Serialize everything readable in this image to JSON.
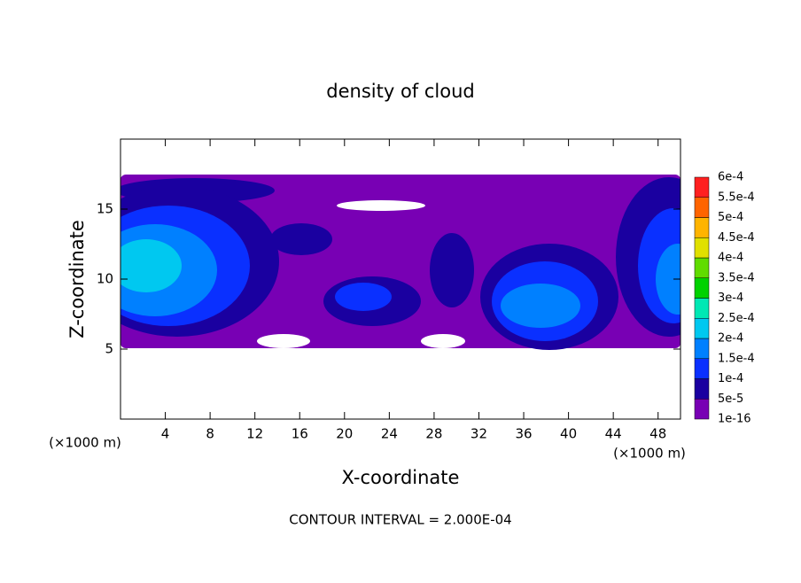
{
  "chart_data": {
    "type": "contour",
    "title": "density of cloud",
    "x_label": "X-coordinate",
    "y_label": "Z-coordinate",
    "x_unit_labels": [
      "(×1000 m)",
      "(×1000 m)"
    ],
    "annotation": "CONTOUR INTERVAL = 2.000E-04",
    "xlim": [
      0,
      50
    ],
    "xticks": [
      4,
      8,
      12,
      16,
      20,
      24,
      28,
      32,
      36,
      40,
      44,
      48
    ],
    "ylim": [
      0,
      20
    ],
    "yticks": [
      5,
      10,
      15
    ],
    "colorbar": {
      "levels": [
        {
          "value": 1e-16,
          "label": "1e-16"
        },
        {
          "value": 5e-05,
          "label": "5e-5"
        },
        {
          "value": 0.0001,
          "label": "1e-4"
        },
        {
          "value": 0.00015,
          "label": "1.5e-4"
        },
        {
          "value": 0.0002,
          "label": "2e-4"
        },
        {
          "value": 0.00025,
          "label": "2.5e-4"
        },
        {
          "value": 0.0003,
          "label": "3e-4"
        },
        {
          "value": 0.00035,
          "label": "3.5e-4"
        },
        {
          "value": 0.0004,
          "label": "4e-4"
        },
        {
          "value": 0.00045,
          "label": "4.5e-4"
        },
        {
          "value": 0.0005,
          "label": "5e-4"
        },
        {
          "value": 0.00055,
          "label": "5.5e-4"
        },
        {
          "value": 0.0006,
          "label": "6e-4"
        }
      ],
      "colors": [
        "#7800b4",
        "#1a00a0",
        "#0a30ff",
        "#0080ff",
        "#00c8f0",
        "#00e8b4",
        "#00d200",
        "#60dc00",
        "#e0e000",
        "#ffb400",
        "#ff6400",
        "#ff2020"
      ]
    }
  }
}
